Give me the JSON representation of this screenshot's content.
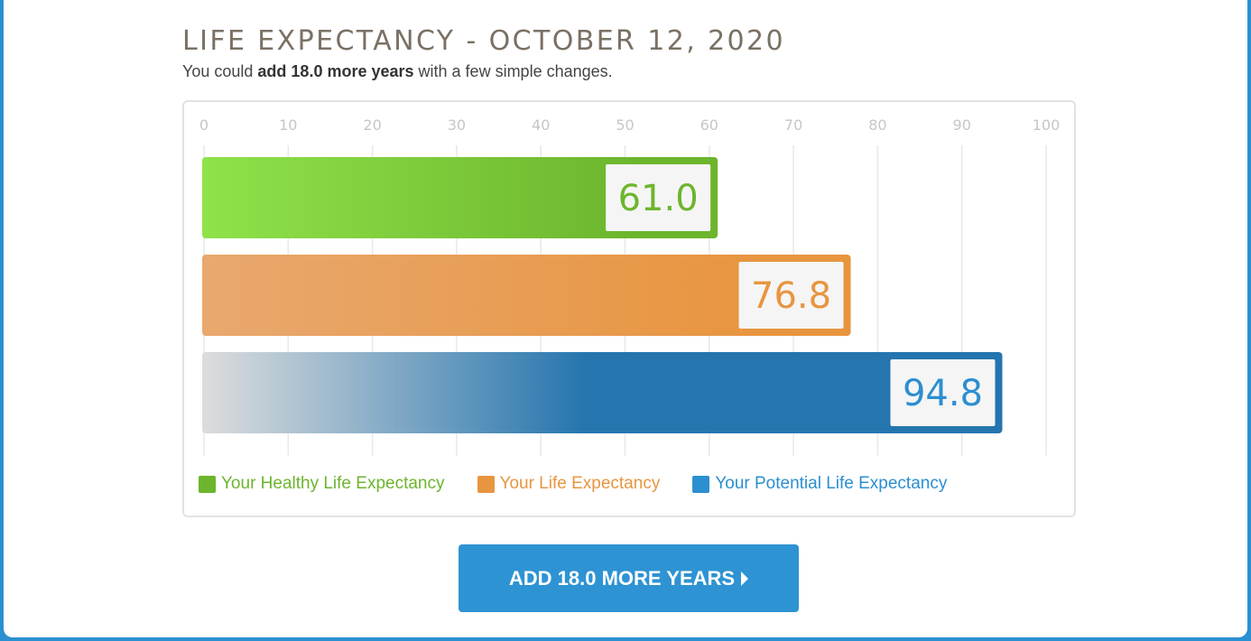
{
  "header": {
    "title": "LIFE EXPECTANCY - OCTOBER 12, 2020",
    "subtitle_prefix": "You could ",
    "subtitle_bold": "add 18.0 more years",
    "subtitle_suffix": " with a few simple changes."
  },
  "chart_data": {
    "type": "bar",
    "orientation": "horizontal",
    "xlim": [
      0,
      100
    ],
    "ticks": [
      "0",
      "10",
      "20",
      "30",
      "40",
      "50",
      "60",
      "70",
      "80",
      "90",
      "100"
    ],
    "grid": true,
    "legend_position": "bottom",
    "series": [
      {
        "name": "Your Healthy Life Expectancy",
        "value": 61.0,
        "label": "61.0",
        "color": "#6cb52d",
        "gradient_start": "#8fe24a",
        "text_color": "#6cb52d"
      },
      {
        "name": "Your Life Expectancy",
        "value": 76.8,
        "label": "76.8",
        "color": "#e8953f",
        "gradient_start": "#e8a86f",
        "text_color": "#e8953f"
      },
      {
        "name": "Your Potential Life Expectancy",
        "value": 94.8,
        "label": "94.8",
        "color": "#2575ae",
        "gradient_start": "#dddddd",
        "text_color": "#2b8fd0",
        "legend_color": "#2b8fd0"
      }
    ]
  },
  "cta": {
    "label": "ADD 18.0 MORE YEARS"
  },
  "colors": {
    "page_background": "#2a8fd0",
    "card_background": "#ffffff",
    "title": "#7a7064",
    "button": "#2e93d3"
  }
}
